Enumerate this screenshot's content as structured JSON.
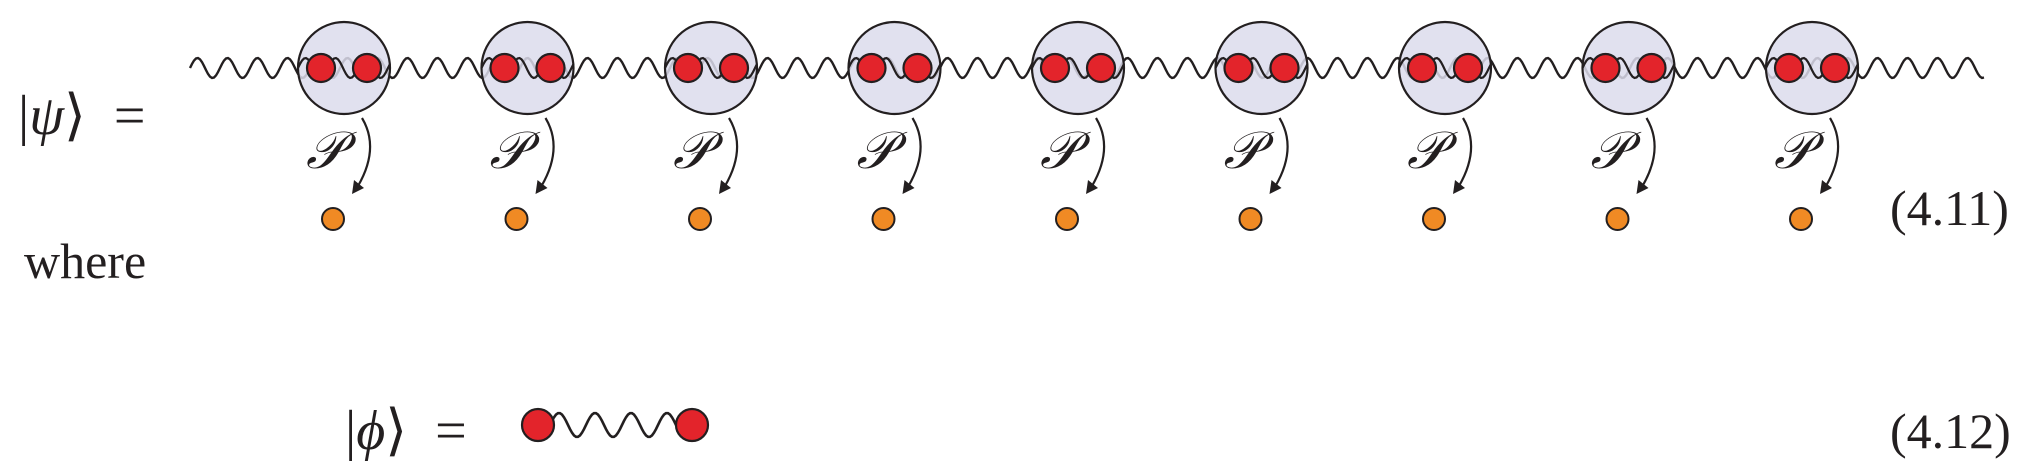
{
  "equation_1": {
    "lhs_bar_left": "|",
    "lhs_symbol": "ψ",
    "lhs_angle": "⟩",
    "equals": "=",
    "number": "(4.11)",
    "operator_label": "𝒫",
    "site_count": 9
  },
  "prose_where": "where",
  "equation_2": {
    "lhs_bar_left": "|",
    "lhs_symbol": "ϕ",
    "lhs_angle": "⟩",
    "equals": "=",
    "number": "(4.12)"
  },
  "colors": {
    "site_fill": "#dcdcec",
    "site_stroke": "#231f20",
    "red_dot": "#e3242b",
    "orange_dot": "#f08a24",
    "line": "#231f20"
  }
}
